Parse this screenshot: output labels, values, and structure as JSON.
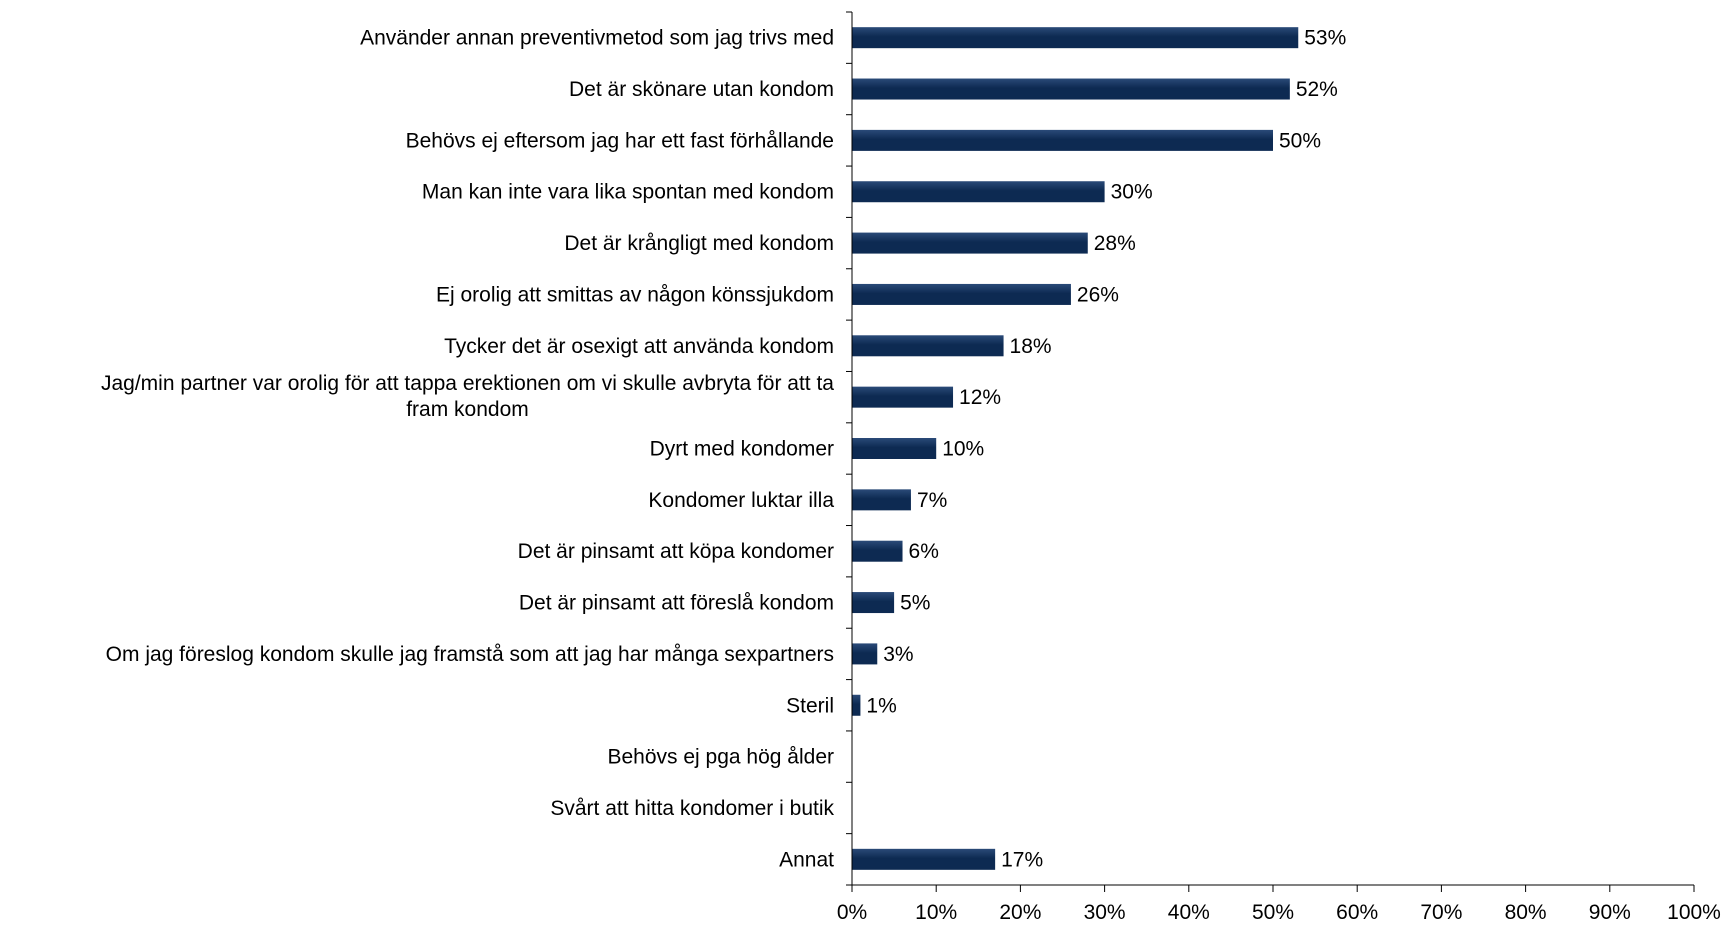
{
  "chart_data": {
    "type": "bar",
    "orientation": "horizontal",
    "title": "",
    "xlabel": "",
    "ylabel": "",
    "categories": [
      "Använder annan preventivmetod som jag trivs med",
      "Det är skönare utan kondom",
      "Behövs ej eftersom jag har ett fast förhållande",
      "Man kan inte vara lika spontan med kondom",
      "Det är krångligt med kondom",
      "Ej orolig att smittas av någon könssjukdom",
      "Tycker det är osexigt att använda kondom",
      "Jag/min partner var orolig för att tappa erektionen om vi skulle avbryta för att ta fram kondom",
      "Dyrt med kondomer",
      "Kondomer luktar illa",
      "Det är pinsamt att köpa kondomer",
      "Det är pinsamt att föreslå kondom",
      "Om jag föreslog kondom skulle jag framstå som att jag har många sexpartners",
      "Steril",
      "Behövs ej pga hög ålder",
      "Svårt att hitta kondomer i butik",
      "Annat"
    ],
    "category_lines": [
      [
        "Använder annan preventivmetod som jag trivs med"
      ],
      [
        "Det är skönare utan kondom"
      ],
      [
        "Behövs ej eftersom jag har ett fast förhållande"
      ],
      [
        "Man kan inte vara lika spontan med kondom"
      ],
      [
        "Det är krångligt med kondom"
      ],
      [
        "Ej orolig att smittas av någon könssjukdom"
      ],
      [
        "Tycker det är osexigt att använda kondom"
      ],
      [
        "Jag/min partner var orolig för att tappa erektionen om vi skulle avbryta för att ta",
        "fram kondom"
      ],
      [
        "Dyrt med kondomer"
      ],
      [
        "Kondomer luktar illa"
      ],
      [
        "Det är pinsamt att köpa kondomer"
      ],
      [
        "Det är pinsamt att föreslå kondom"
      ],
      [
        "Om jag föreslog kondom skulle jag framstå som att jag har många sexpartners"
      ],
      [
        "Steril"
      ],
      [
        "Behövs ej pga hög ålder"
      ],
      [
        "Svårt att hitta kondomer i butik"
      ],
      [
        "Annat"
      ]
    ],
    "values": [
      53,
      52,
      50,
      30,
      28,
      26,
      18,
      12,
      10,
      7,
      6,
      5,
      3,
      1,
      null,
      null,
      17
    ],
    "data_labels": [
      "53%",
      "52%",
      "50%",
      "30%",
      "28%",
      "26%",
      "18%",
      "12%",
      "10%",
      "7%",
      "6%",
      "5%",
      "3%",
      "1%",
      "",
      "",
      "17%"
    ],
    "xlim": [
      0,
      100
    ],
    "x_ticks": [
      0,
      10,
      20,
      30,
      40,
      50,
      60,
      70,
      80,
      90,
      100
    ],
    "x_tick_labels": [
      "0%",
      "10%",
      "20%",
      "30%",
      "40%",
      "50%",
      "60%",
      "70%",
      "80%",
      "90%",
      "100%"
    ],
    "grid": false,
    "legend": "none",
    "bar_color": "#0d2a52",
    "bar_gradient_color": "#2a4a78"
  }
}
